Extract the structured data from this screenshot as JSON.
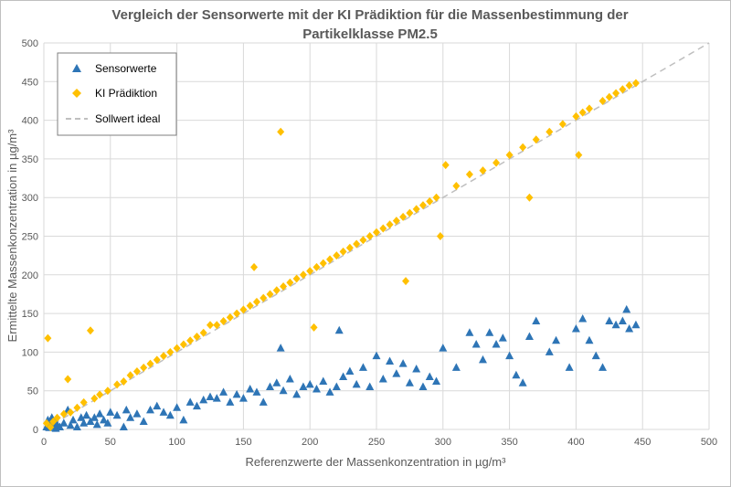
{
  "chart_data": {
    "type": "scatter",
    "title": "Vergleich  der Sensorwerte mit der KI Prädiktion für die Massenbestimmung der Partikelklasse PM2.5",
    "title_lines": [
      "Vergleich  der Sensorwerte mit der KI Prädiktion für die Massenbestimmung der",
      "Partikelklasse PM2.5"
    ],
    "xlabel": "Referenzwerte der Massenkonzentration in µg/m³",
    "ylabel": "Ermittelte Massenkonzentration in µg/m³",
    "xlim": [
      0,
      500
    ],
    "ylim": [
      0,
      500
    ],
    "xticks": [
      0,
      50,
      100,
      150,
      200,
      250,
      300,
      350,
      400,
      450,
      500
    ],
    "yticks": [
      0,
      50,
      100,
      150,
      200,
      250,
      300,
      350,
      400,
      450,
      500
    ],
    "grid": true,
    "legend_position": "top-left",
    "series": [
      {
        "name": "Sensorwerte",
        "marker": "triangle",
        "color": "#2e75b6",
        "points": [
          [
            2,
            3
          ],
          [
            3,
            12
          ],
          [
            4,
            2
          ],
          [
            5,
            8
          ],
          [
            6,
            15
          ],
          [
            7,
            4
          ],
          [
            8,
            10
          ],
          [
            9,
            1
          ],
          [
            10,
            6
          ],
          [
            12,
            3
          ],
          [
            15,
            8
          ],
          [
            18,
            25
          ],
          [
            20,
            5
          ],
          [
            22,
            12
          ],
          [
            25,
            3
          ],
          [
            28,
            15
          ],
          [
            30,
            8
          ],
          [
            32,
            18
          ],
          [
            35,
            10
          ],
          [
            38,
            15
          ],
          [
            40,
            6
          ],
          [
            42,
            20
          ],
          [
            45,
            12
          ],
          [
            48,
            8
          ],
          [
            50,
            22
          ],
          [
            55,
            18
          ],
          [
            60,
            3
          ],
          [
            62,
            25
          ],
          [
            65,
            15
          ],
          [
            70,
            20
          ],
          [
            75,
            10
          ],
          [
            80,
            25
          ],
          [
            85,
            30
          ],
          [
            90,
            22
          ],
          [
            95,
            18
          ],
          [
            100,
            28
          ],
          [
            105,
            12
          ],
          [
            110,
            35
          ],
          [
            115,
            30
          ],
          [
            120,
            38
          ],
          [
            125,
            42
          ],
          [
            130,
            40
          ],
          [
            135,
            48
          ],
          [
            140,
            35
          ],
          [
            145,
            45
          ],
          [
            150,
            40
          ],
          [
            155,
            52
          ],
          [
            160,
            48
          ],
          [
            165,
            35
          ],
          [
            170,
            55
          ],
          [
            175,
            60
          ],
          [
            178,
            105
          ],
          [
            180,
            50
          ],
          [
            185,
            65
          ],
          [
            190,
            45
          ],
          [
            195,
            55
          ],
          [
            200,
            58
          ],
          [
            205,
            52
          ],
          [
            210,
            62
          ],
          [
            215,
            48
          ],
          [
            220,
            55
          ],
          [
            222,
            128
          ],
          [
            225,
            68
          ],
          [
            230,
            75
          ],
          [
            235,
            58
          ],
          [
            240,
            80
          ],
          [
            245,
            55
          ],
          [
            250,
            95
          ],
          [
            255,
            65
          ],
          [
            260,
            88
          ],
          [
            265,
            72
          ],
          [
            270,
            85
          ],
          [
            275,
            60
          ],
          [
            280,
            78
          ],
          [
            285,
            55
          ],
          [
            290,
            68
          ],
          [
            295,
            62
          ],
          [
            300,
            105
          ],
          [
            310,
            80
          ],
          [
            320,
            125
          ],
          [
            325,
            110
          ],
          [
            330,
            90
          ],
          [
            335,
            125
          ],
          [
            340,
            110
          ],
          [
            345,
            118
          ],
          [
            350,
            95
          ],
          [
            355,
            70
          ],
          [
            360,
            60
          ],
          [
            365,
            120
          ],
          [
            370,
            140
          ],
          [
            380,
            100
          ],
          [
            385,
            115
          ],
          [
            395,
            80
          ],
          [
            400,
            130
          ],
          [
            405,
            143
          ],
          [
            410,
            115
          ],
          [
            415,
            95
          ],
          [
            420,
            80
          ],
          [
            425,
            140
          ],
          [
            430,
            135
          ],
          [
            435,
            140
          ],
          [
            438,
            155
          ],
          [
            440,
            130
          ],
          [
            445,
            135
          ]
        ]
      },
      {
        "name": "KI Prädiktion",
        "marker": "diamond",
        "color": "#ffc000",
        "points": [
          [
            2,
            8
          ],
          [
            3,
            118
          ],
          [
            5,
            3
          ],
          [
            7,
            10
          ],
          [
            10,
            15
          ],
          [
            15,
            20
          ],
          [
            18,
            65
          ],
          [
            20,
            22
          ],
          [
            25,
            28
          ],
          [
            30,
            35
          ],
          [
            35,
            128
          ],
          [
            38,
            40
          ],
          [
            42,
            45
          ],
          [
            48,
            50
          ],
          [
            55,
            58
          ],
          [
            60,
            62
          ],
          [
            65,
            70
          ],
          [
            70,
            75
          ],
          [
            75,
            80
          ],
          [
            80,
            85
          ],
          [
            85,
            90
          ],
          [
            90,
            95
          ],
          [
            95,
            100
          ],
          [
            100,
            105
          ],
          [
            105,
            110
          ],
          [
            110,
            115
          ],
          [
            115,
            120
          ],
          [
            120,
            125
          ],
          [
            125,
            135
          ],
          [
            130,
            135
          ],
          [
            135,
            140
          ],
          [
            140,
            145
          ],
          [
            145,
            150
          ],
          [
            150,
            155
          ],
          [
            155,
            160
          ],
          [
            158,
            210
          ],
          [
            160,
            165
          ],
          [
            165,
            170
          ],
          [
            170,
            175
          ],
          [
            175,
            180
          ],
          [
            178,
            385
          ],
          [
            180,
            185
          ],
          [
            185,
            190
          ],
          [
            190,
            195
          ],
          [
            195,
            200
          ],
          [
            200,
            205
          ],
          [
            203,
            132
          ],
          [
            205,
            210
          ],
          [
            210,
            215
          ],
          [
            215,
            220
          ],
          [
            220,
            225
          ],
          [
            225,
            230
          ],
          [
            230,
            235
          ],
          [
            235,
            240
          ],
          [
            240,
            245
          ],
          [
            245,
            250
          ],
          [
            250,
            255
          ],
          [
            255,
            260
          ],
          [
            260,
            265
          ],
          [
            265,
            270
          ],
          [
            270,
            275
          ],
          [
            272,
            192
          ],
          [
            275,
            280
          ],
          [
            280,
            285
          ],
          [
            285,
            290
          ],
          [
            290,
            295
          ],
          [
            295,
            300
          ],
          [
            298,
            250
          ],
          [
            302,
            342
          ],
          [
            310,
            315
          ],
          [
            320,
            330
          ],
          [
            330,
            335
          ],
          [
            340,
            345
          ],
          [
            350,
            355
          ],
          [
            360,
            365
          ],
          [
            365,
            300
          ],
          [
            370,
            375
          ],
          [
            380,
            385
          ],
          [
            390,
            395
          ],
          [
            400,
            405
          ],
          [
            402,
            355
          ],
          [
            405,
            410
          ],
          [
            410,
            415
          ],
          [
            420,
            425
          ],
          [
            425,
            430
          ],
          [
            430,
            435
          ],
          [
            435,
            440
          ],
          [
            440,
            445
          ],
          [
            445,
            448
          ]
        ]
      },
      {
        "name": "Sollwert ideal",
        "marker": "dashed-line",
        "color": "#bfbfbf",
        "points": [
          [
            0,
            0
          ],
          [
            500,
            500
          ]
        ]
      }
    ]
  }
}
